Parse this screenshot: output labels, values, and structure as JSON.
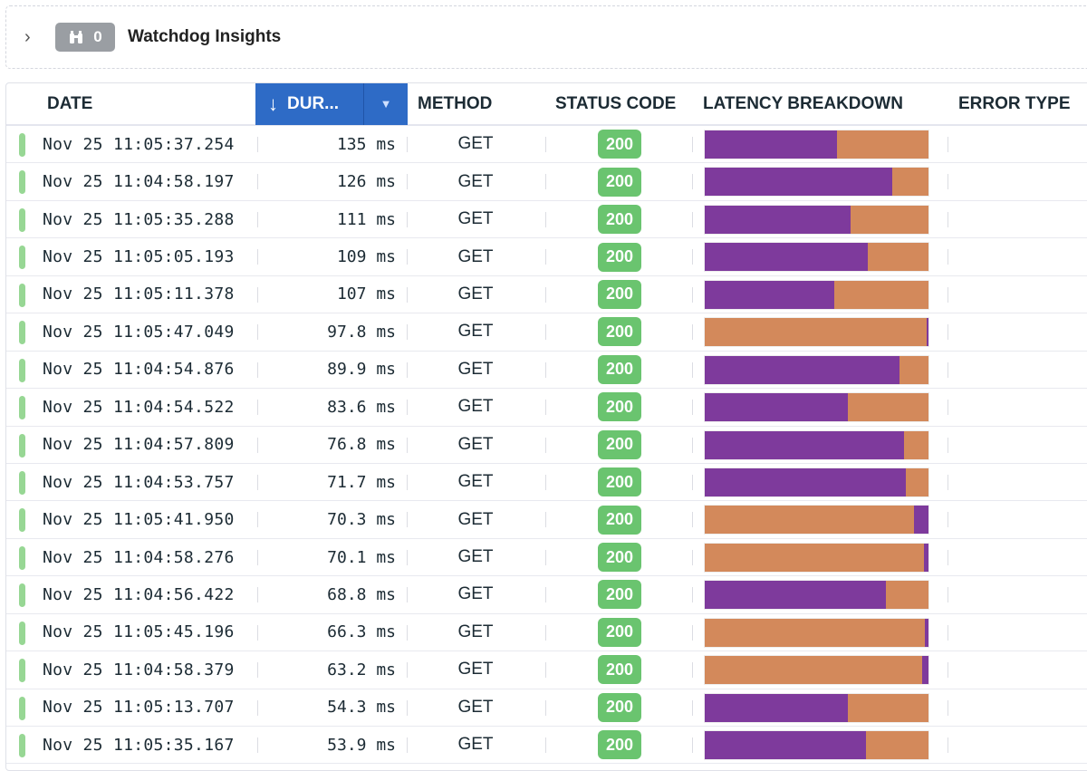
{
  "insights": {
    "title": "Watchdog Insights",
    "count": "0",
    "icon": "binoculars-icon",
    "expand_icon": "chevron-right-icon"
  },
  "columns": {
    "date": "DATE",
    "duration": "DUR...",
    "method": "METHOD",
    "status": "STATUS CODE",
    "latency": "LATENCY BREAKDOWN",
    "error": "ERROR TYPE",
    "sort_direction": "descending"
  },
  "colors": {
    "purple": "#7e3a9c",
    "orange": "#d3895b",
    "status_ok": "#6ac46f",
    "indicator": "#97d794",
    "sort_header": "#2e6bc6"
  },
  "rows": [
    {
      "date": "Nov 25 11:05:37.254",
      "duration": "135 ms",
      "method": "GET",
      "status": "200",
      "breakdown": [
        [
          "purple",
          0.59
        ],
        [
          "orange",
          0.41
        ]
      ]
    },
    {
      "date": "Nov 25 11:04:58.197",
      "duration": "126 ms",
      "method": "GET",
      "status": "200",
      "breakdown": [
        [
          "purple",
          0.84
        ],
        [
          "orange",
          0.16
        ]
      ]
    },
    {
      "date": "Nov 25 11:05:35.288",
      "duration": "111 ms",
      "method": "GET",
      "status": "200",
      "breakdown": [
        [
          "purple",
          0.65
        ],
        [
          "orange",
          0.35
        ]
      ]
    },
    {
      "date": "Nov 25 11:05:05.193",
      "duration": "109 ms",
      "method": "GET",
      "status": "200",
      "breakdown": [
        [
          "purple",
          0.73
        ],
        [
          "orange",
          0.27
        ]
      ]
    },
    {
      "date": "Nov 25 11:05:11.378",
      "duration": "107 ms",
      "method": "GET",
      "status": "200",
      "breakdown": [
        [
          "purple",
          0.58
        ],
        [
          "orange",
          0.42
        ]
      ]
    },
    {
      "date": "Nov 25 11:05:47.049",
      "duration": "97.8 ms",
      "method": "GET",
      "status": "200",
      "breakdown": [
        [
          "orange",
          0.99
        ],
        [
          "purple",
          0.01
        ]
      ]
    },
    {
      "date": "Nov 25 11:04:54.876",
      "duration": "89.9 ms",
      "method": "GET",
      "status": "200",
      "breakdown": [
        [
          "purple",
          0.87
        ],
        [
          "orange",
          0.13
        ]
      ]
    },
    {
      "date": "Nov 25 11:04:54.522",
      "duration": "83.6 ms",
      "method": "GET",
      "status": "200",
      "breakdown": [
        [
          "purple",
          0.64
        ],
        [
          "orange",
          0.36
        ]
      ]
    },
    {
      "date": "Nov 25 11:04:57.809",
      "duration": "76.8 ms",
      "method": "GET",
      "status": "200",
      "breakdown": [
        [
          "purple",
          0.89
        ],
        [
          "orange",
          0.11
        ]
      ]
    },
    {
      "date": "Nov 25 11:04:53.757",
      "duration": "71.7 ms",
      "method": "GET",
      "status": "200",
      "breakdown": [
        [
          "purple",
          0.9
        ],
        [
          "orange",
          0.1
        ]
      ]
    },
    {
      "date": "Nov 25 11:05:41.950",
      "duration": "70.3 ms",
      "method": "GET",
      "status": "200",
      "breakdown": [
        [
          "orange",
          0.935
        ],
        [
          "purple",
          0.065
        ]
      ]
    },
    {
      "date": "Nov 25 11:04:58.276",
      "duration": "70.1 ms",
      "method": "GET",
      "status": "200",
      "breakdown": [
        [
          "orange",
          0.98
        ],
        [
          "purple",
          0.02
        ]
      ]
    },
    {
      "date": "Nov 25 11:04:56.422",
      "duration": "68.8 ms",
      "method": "GET",
      "status": "200",
      "breakdown": [
        [
          "purple",
          0.81
        ],
        [
          "orange",
          0.19
        ]
      ]
    },
    {
      "date": "Nov 25 11:05:45.196",
      "duration": "66.3 ms",
      "method": "GET",
      "status": "200",
      "breakdown": [
        [
          "orange",
          0.985
        ],
        [
          "purple",
          0.015
        ]
      ]
    },
    {
      "date": "Nov 25 11:04:58.379",
      "duration": "63.2 ms",
      "method": "GET",
      "status": "200",
      "breakdown": [
        [
          "orange",
          0.97
        ],
        [
          "purple",
          0.03
        ]
      ]
    },
    {
      "date": "Nov 25 11:05:13.707",
      "duration": "54.3 ms",
      "method": "GET",
      "status": "200",
      "breakdown": [
        [
          "purple",
          0.64
        ],
        [
          "orange",
          0.36
        ]
      ]
    },
    {
      "date": "Nov 25 11:05:35.167",
      "duration": "53.9 ms",
      "method": "GET",
      "status": "200",
      "breakdown": [
        [
          "purple",
          0.72
        ],
        [
          "orange",
          0.28
        ]
      ]
    }
  ]
}
